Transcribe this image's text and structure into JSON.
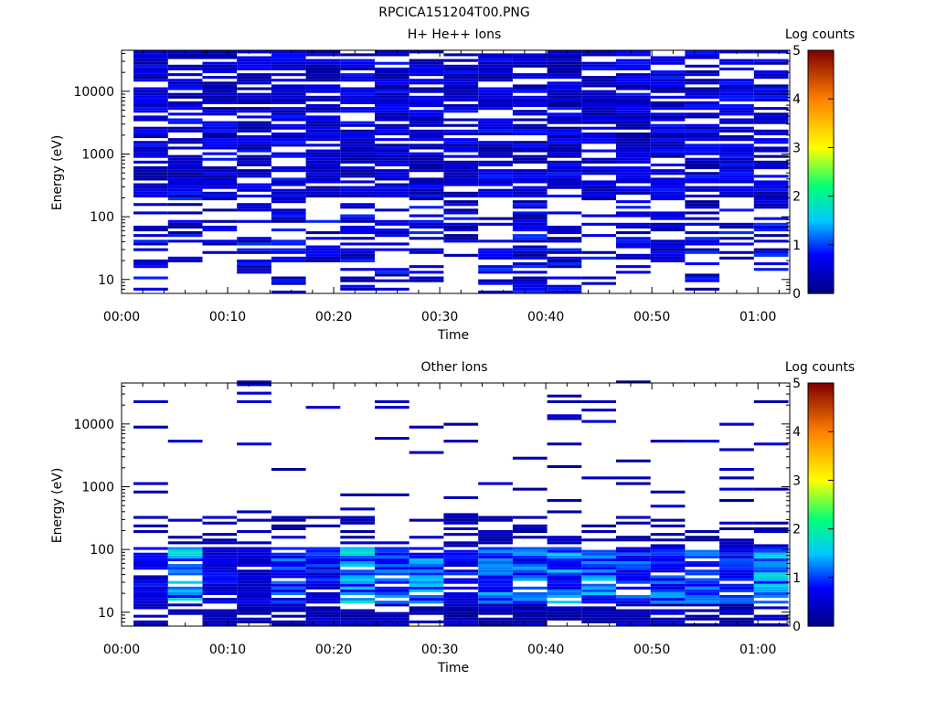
{
  "figure_title": "RPCICA151204T00.PNG",
  "chart_data": [
    {
      "type": "heatmap",
      "title": "H+ He++ Ions",
      "xlabel": "Time",
      "ylabel": "Energy (eV)",
      "x_ticks": [
        "00:00",
        "00:10",
        "00:20",
        "00:30",
        "00:40",
        "00:50",
        "01:00"
      ],
      "x_range_minutes": [
        0,
        63
      ],
      "y_scale": "log",
      "y_ticks": [
        10,
        100,
        1000,
        10000
      ],
      "y_range": [
        6,
        45000
      ],
      "colorbar": {
        "label": "Log counts",
        "ticks": [
          0,
          1,
          2,
          3,
          4,
          5
        ],
        "range": [
          0,
          5
        ]
      },
      "time_columns": [
        2.75,
        6.0,
        9.25,
        12.5,
        15.75,
        19.0,
        22.25,
        25.5,
        28.75,
        32.0,
        35.25,
        38.5,
        41.75,
        45.0,
        48.25,
        51.5,
        54.75,
        58.0,
        61.25
      ],
      "energy_range_by_column_eV": [
        [
          6,
          45000
        ],
        [
          17,
          45000
        ],
        [
          20,
          45000
        ],
        [
          12,
          45000
        ],
        [
          6,
          45000
        ],
        [
          12,
          45000
        ],
        [
          6,
          45000
        ],
        [
          6,
          45000
        ],
        [
          6,
          45000
        ],
        [
          20,
          45000
        ],
        [
          6,
          45000
        ],
        [
          6,
          45000
        ],
        [
          6,
          45000
        ],
        [
          6,
          45000
        ],
        [
          12,
          45000
        ],
        [
          12,
          45000
        ],
        [
          6,
          45000
        ],
        [
          20,
          45000
        ],
        [
          12,
          45000
        ]
      ],
      "value_description": "Mostly 0.1–0.8 log counts across the energy range"
    },
    {
      "type": "heatmap",
      "title": "Other Ions",
      "xlabel": "Time",
      "ylabel": "Energy (eV)",
      "x_ticks": [
        "00:00",
        "00:10",
        "00:20",
        "00:30",
        "00:40",
        "00:50",
        "01:00"
      ],
      "x_range_minutes": [
        0,
        63
      ],
      "y_scale": "log",
      "y_ticks": [
        10,
        100,
        1000,
        10000
      ],
      "y_range": [
        6,
        45000
      ],
      "colorbar": {
        "label": "Log counts",
        "ticks": [
          0,
          1,
          2,
          3,
          4,
          5
        ],
        "range": [
          0,
          5
        ]
      },
      "time_columns": [
        2.75,
        6.0,
        9.25,
        12.5,
        15.75,
        19.0,
        22.25,
        25.5,
        28.75,
        32.0,
        35.25,
        38.5,
        41.75,
        45.0,
        48.25,
        51.5,
        54.75,
        58.0,
        61.25
      ],
      "peak_log_counts_by_column": [
        0.9,
        1.8,
        0.9,
        0.7,
        1.3,
        1.1,
        1.9,
        1.4,
        1.6,
        1.0,
        1.5,
        1.4,
        1.6,
        1.6,
        1.3,
        1.5,
        1.4,
        1.2,
        1.7
      ],
      "value_description": "Strongest signal at 20–100 eV; sparse lines at higher energies"
    }
  ]
}
